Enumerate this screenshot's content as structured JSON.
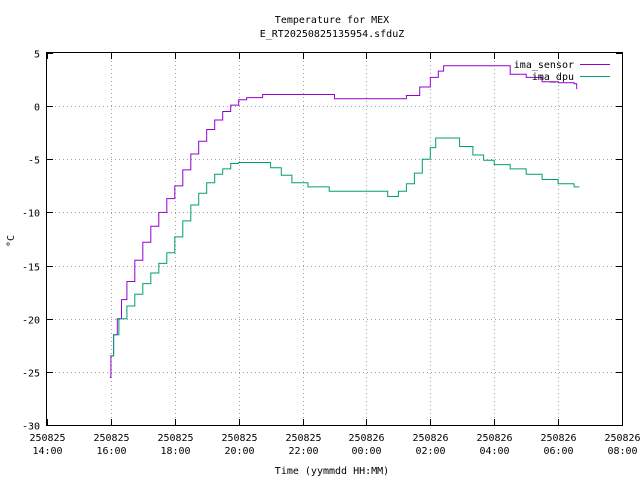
{
  "chart_data": {
    "type": "line",
    "title": "Temperature for MEX",
    "subtitle": "E_RT20250825135954.sfduZ",
    "xlabel": "Time (yymmdd HH:MM)",
    "ylabel": "°C",
    "ylim": [
      -30,
      5
    ],
    "yticks": [
      -30,
      -25,
      -20,
      -15,
      -10,
      -5,
      0,
      5
    ],
    "xlim": [
      "2025-08-25 14:00",
      "2025-08-26 08:00"
    ],
    "xticks": [
      {
        "date": "250825",
        "time": "14:00"
      },
      {
        "date": "250825",
        "time": "16:00"
      },
      {
        "date": "250825",
        "time": "18:00"
      },
      {
        "date": "250825",
        "time": "20:00"
      },
      {
        "date": "250825",
        "time": "22:00"
      },
      {
        "date": "250826",
        "time": "00:00"
      },
      {
        "date": "250826",
        "time": "02:00"
      },
      {
        "date": "250826",
        "time": "04:00"
      },
      {
        "date": "250826",
        "time": "06:00"
      },
      {
        "date": "250826",
        "time": "08:00"
      }
    ],
    "grid": true,
    "legend_position": "top-right",
    "series": [
      {
        "name": "ima_sensor",
        "color": "#9400d3",
        "points": [
          [
            "2025-08-25 15:58",
            -25.5
          ],
          [
            "2025-08-25 16:00",
            -23.5
          ],
          [
            "2025-08-25 16:05",
            -21.5
          ],
          [
            "2025-08-25 16:12",
            -20.0
          ],
          [
            "2025-08-25 16:20",
            -18.2
          ],
          [
            "2025-08-25 16:30",
            -16.5
          ],
          [
            "2025-08-25 16:45",
            -14.5
          ],
          [
            "2025-08-25 17:00",
            -12.8
          ],
          [
            "2025-08-25 17:15",
            -11.3
          ],
          [
            "2025-08-25 17:30",
            -10.0
          ],
          [
            "2025-08-25 17:45",
            -8.7
          ],
          [
            "2025-08-25 18:00",
            -7.5
          ],
          [
            "2025-08-25 18:15",
            -6.0
          ],
          [
            "2025-08-25 18:30",
            -4.5
          ],
          [
            "2025-08-25 18:45",
            -3.3
          ],
          [
            "2025-08-25 19:00",
            -2.2
          ],
          [
            "2025-08-25 19:15",
            -1.3
          ],
          [
            "2025-08-25 19:30",
            -0.5
          ],
          [
            "2025-08-25 19:45",
            0.1
          ],
          [
            "2025-08-25 20:00",
            0.6
          ],
          [
            "2025-08-25 20:15",
            0.8
          ],
          [
            "2025-08-25 20:45",
            1.1
          ],
          [
            "2025-08-25 22:30",
            1.1
          ],
          [
            "2025-08-25 23:00",
            0.7
          ],
          [
            "2025-08-26 01:00",
            0.7
          ],
          [
            "2025-08-26 01:15",
            1.0
          ],
          [
            "2025-08-26 01:40",
            1.8
          ],
          [
            "2025-08-26 02:00",
            2.7
          ],
          [
            "2025-08-26 02:15",
            3.3
          ],
          [
            "2025-08-26 02:25",
            3.8
          ],
          [
            "2025-08-26 03:40",
            3.8
          ],
          [
            "2025-08-26 04:00",
            3.8
          ],
          [
            "2025-08-26 04:30",
            3.0
          ],
          [
            "2025-08-26 05:00",
            2.7
          ],
          [
            "2025-08-26 05:30",
            2.3
          ],
          [
            "2025-08-26 06:00",
            2.2
          ],
          [
            "2025-08-26 06:30",
            2.1
          ],
          [
            "2025-08-26 06:35",
            1.6
          ]
        ]
      },
      {
        "name": "ima_dpu",
        "color": "#009e73",
        "points": [
          [
            "2025-08-25 15:58",
            -23.5
          ],
          [
            "2025-08-25 16:05",
            -21.5
          ],
          [
            "2025-08-25 16:15",
            -20.0
          ],
          [
            "2025-08-25 16:30",
            -18.8
          ],
          [
            "2025-08-25 16:45",
            -17.7
          ],
          [
            "2025-08-25 17:00",
            -16.7
          ],
          [
            "2025-08-25 17:15",
            -15.7
          ],
          [
            "2025-08-25 17:30",
            -14.8
          ],
          [
            "2025-08-25 17:45",
            -13.8
          ],
          [
            "2025-08-25 18:00",
            -12.3
          ],
          [
            "2025-08-25 18:15",
            -10.8
          ],
          [
            "2025-08-25 18:30",
            -9.3
          ],
          [
            "2025-08-25 18:45",
            -8.2
          ],
          [
            "2025-08-25 19:00",
            -7.2
          ],
          [
            "2025-08-25 19:15",
            -6.4
          ],
          [
            "2025-08-25 19:30",
            -5.9
          ],
          [
            "2025-08-25 19:45",
            -5.4
          ],
          [
            "2025-08-25 20:00",
            -5.3
          ],
          [
            "2025-08-25 20:45",
            -5.3
          ],
          [
            "2025-08-25 21:00",
            -5.8
          ],
          [
            "2025-08-25 21:20",
            -6.5
          ],
          [
            "2025-08-25 21:40",
            -7.2
          ],
          [
            "2025-08-25 22:10",
            -7.6
          ],
          [
            "2025-08-25 22:50",
            -8.0
          ],
          [
            "2025-08-26 00:30",
            -8.0
          ],
          [
            "2025-08-26 00:40",
            -8.5
          ],
          [
            "2025-08-26 01:00",
            -8.0
          ],
          [
            "2025-08-26 01:15",
            -7.3
          ],
          [
            "2025-08-26 01:30",
            -6.3
          ],
          [
            "2025-08-26 01:45",
            -5.0
          ],
          [
            "2025-08-26 02:00",
            -3.9
          ],
          [
            "2025-08-26 02:10",
            -3.0
          ],
          [
            "2025-08-26 02:35",
            -3.0
          ],
          [
            "2025-08-26 02:55",
            -3.8
          ],
          [
            "2025-08-26 03:20",
            -4.6
          ],
          [
            "2025-08-26 03:40",
            -5.1
          ],
          [
            "2025-08-26 04:00",
            -5.5
          ],
          [
            "2025-08-26 04:30",
            -5.9
          ],
          [
            "2025-08-26 05:00",
            -6.4
          ],
          [
            "2025-08-26 05:30",
            -6.9
          ],
          [
            "2025-08-26 06:00",
            -7.3
          ],
          [
            "2025-08-26 06:30",
            -7.6
          ],
          [
            "2025-08-26 06:40",
            -7.6
          ]
        ]
      }
    ]
  }
}
